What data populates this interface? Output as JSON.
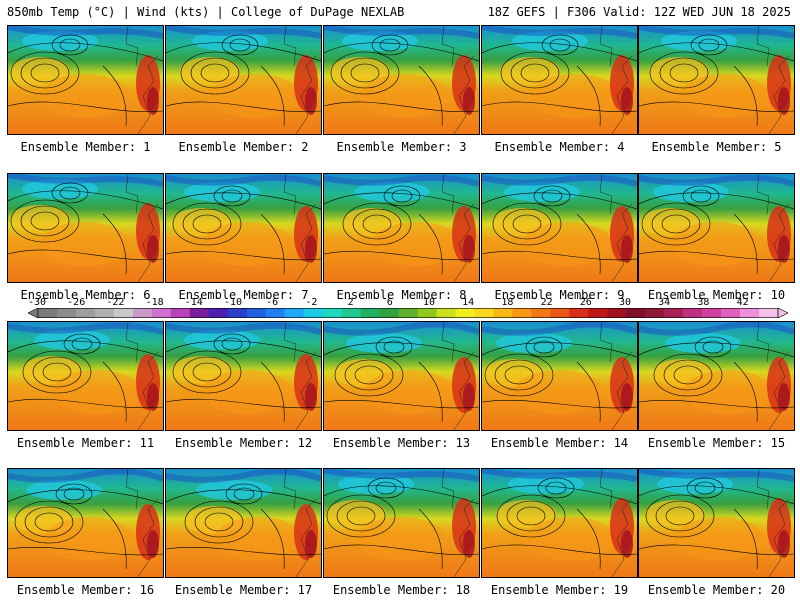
{
  "header": {
    "left": "850mb Temp (°C) | Wind (kts) | College of DuPage NEXLAB",
    "right": "18Z GEFS | F306 Valid: 12Z WED JUN 18 2025"
  },
  "panels": [
    {
      "label": "Ensemble Member: 1"
    },
    {
      "label": "Ensemble Member: 2"
    },
    {
      "label": "Ensemble Member: 3"
    },
    {
      "label": "Ensemble Member: 4"
    },
    {
      "label": "Ensemble Member: 5"
    },
    {
      "label": "Ensemble Member: 6"
    },
    {
      "label": "Ensemble Member: 7"
    },
    {
      "label": "Ensemble Member: 8"
    },
    {
      "label": "Ensemble Member: 9"
    },
    {
      "label": "Ensemble Member: 10"
    },
    {
      "label": "Ensemble Member: 11"
    },
    {
      "label": "Ensemble Member: 12"
    },
    {
      "label": "Ensemble Member: 13"
    },
    {
      "label": "Ensemble Member: 14"
    },
    {
      "label": "Ensemble Member: 15"
    },
    {
      "label": "Ensemble Member: 16"
    },
    {
      "label": "Ensemble Member: 17"
    },
    {
      "label": "Ensemble Member: 18"
    },
    {
      "label": "Ensemble Member: 19"
    },
    {
      "label": "Ensemble Member: 20"
    }
  ],
  "colorbar": {
    "ticks": [
      "-30",
      "-26",
      "-22",
      "-18",
      "-14",
      "-10",
      "-6",
      "-2",
      "2",
      "6",
      "10",
      "14",
      "18",
      "22",
      "26",
      "30",
      "34",
      "38",
      "42"
    ],
    "colors": [
      "#7a7a7a",
      "#8c8c8c",
      "#9e9e9e",
      "#b0b0b0",
      "#c8c8c8",
      "#c79ac7",
      "#d070d0",
      "#b844b8",
      "#7a1fa0",
      "#4b1fb0",
      "#2b3fc8",
      "#1f60e0",
      "#2080f0",
      "#20a8f8",
      "#20c8e8",
      "#20d8c0",
      "#20c890",
      "#20b060",
      "#30a040",
      "#60b030",
      "#90c820",
      "#c8e020",
      "#f0f020",
      "#f8d820",
      "#f8b818",
      "#f89818",
      "#f07818",
      "#e85818",
      "#d83018",
      "#c01818",
      "#a01020",
      "#801028",
      "#901838",
      "#a82058",
      "#c03080",
      "#d040a0",
      "#e060c0",
      "#ee90d8",
      "#f4c0e8"
    ]
  }
}
